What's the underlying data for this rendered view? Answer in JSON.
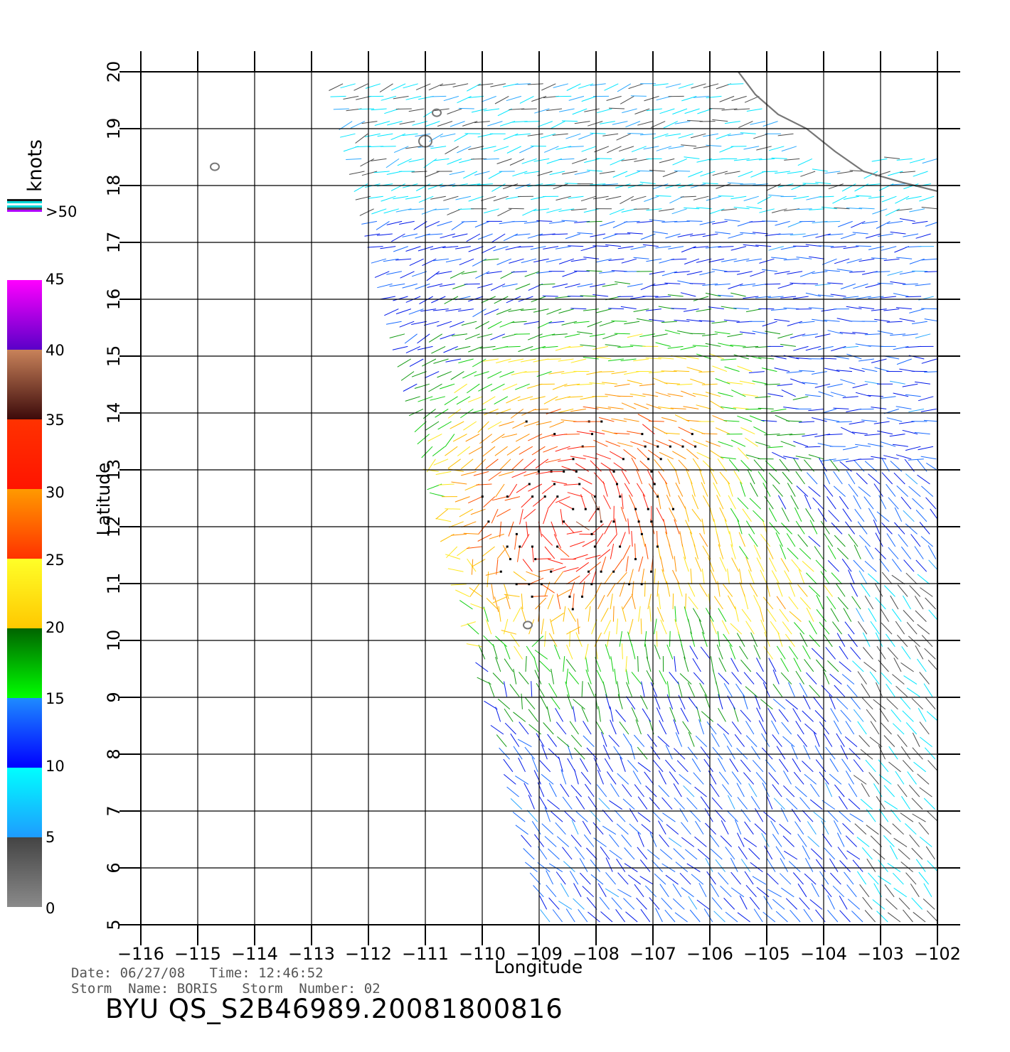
{
  "map": {
    "xlabel": "Longitude",
    "ylabel": "Latitude",
    "lon_min": -116,
    "lon_max": -102,
    "lat_min": 5,
    "lat_max": 20,
    "lon_ticks": [
      "−116",
      "−115",
      "−114",
      "−113",
      "−112",
      "−111",
      "−110",
      "−109",
      "−108",
      "−107",
      "−106",
      "−105",
      "−104",
      "−103",
      "−102"
    ],
    "lat_ticks": [
      "5",
      "6",
      "7",
      "8",
      "9",
      "10",
      "11",
      "12",
      "13",
      "14",
      "15",
      "16",
      "17",
      "18",
      "19",
      "20"
    ],
    "grid": true,
    "swath": {
      "lat_bottom": 5.0,
      "lat_top": 20.0,
      "west_lon_bottom": -108.9,
      "west_lon_top": -112.6,
      "east_lon": -102
    },
    "islands": [
      {
        "name": "clarion",
        "lon": -114.7,
        "lat": 18.33
      },
      {
        "name": "socorro",
        "lon": -111.0,
        "lat": 18.78
      },
      {
        "name": "san-benedicto",
        "lon": -110.8,
        "lat": 19.28
      },
      {
        "name": "clipperton",
        "lon": -109.2,
        "lat": 10.27
      }
    ],
    "coastline": [
      [
        -105.5,
        20.0
      ],
      [
        -105.2,
        19.6
      ],
      [
        -104.8,
        19.25
      ],
      [
        -104.3,
        19.0
      ],
      [
        -103.8,
        18.6
      ],
      [
        -103.3,
        18.25
      ],
      [
        -102.6,
        18.05
      ],
      [
        -102.0,
        17.9
      ]
    ],
    "storm": {
      "name": "BORIS",
      "center_lon": -108.3,
      "center_lat": 12.3
    }
  },
  "colorbar": {
    "unit": "knots",
    "labels": [
      ">50",
      "45",
      "40",
      "35",
      "30",
      "25",
      "20",
      "15",
      "10",
      "5",
      "0"
    ],
    "bins": [
      {
        "range": "0-5",
        "color": "#444444",
        "color2": "#8a8a8a"
      },
      {
        "range": "5-10",
        "color": "#00ffff",
        "color2": "#1e9bff"
      },
      {
        "range": "10-15",
        "color": "#1e8bff",
        "color2": "#0000ff"
      },
      {
        "range": "15-20",
        "color": "#006400",
        "color2": "#00ff00"
      },
      {
        "range": "20-25",
        "color": "#ffff28",
        "color2": "#ffc800"
      },
      {
        "range": "25-30",
        "color": "#ff9a00",
        "color2": "#ff3200"
      },
      {
        "range": "30-35",
        "color": "#ff3200",
        "color2": "#ff1400"
      },
      {
        "range": "35-40",
        "color": "#c8825a",
        "color2": "#3c0a0a"
      },
      {
        "range": "40-50",
        "color": "#ff00ff",
        "color2": "#5a00c8"
      }
    ]
  },
  "info": {
    "line1": "Date: 06/27/08   Time: 12:46:52",
    "line2": "Storm  Name: BORIS   Storm  Number: 02",
    "product": "BYU  QS_S2B46989.20081800816"
  }
}
